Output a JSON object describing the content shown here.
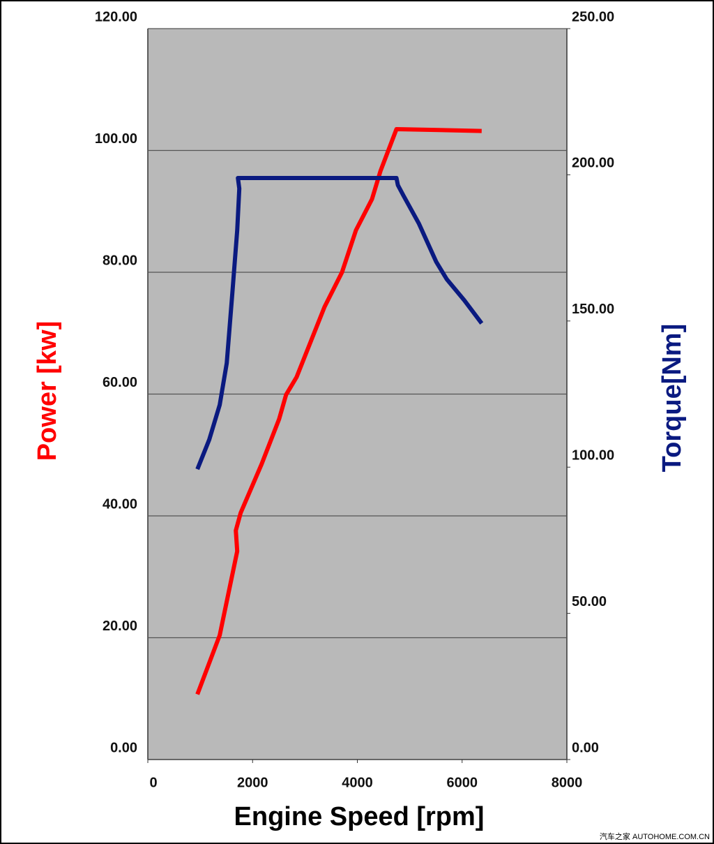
{
  "chart_data": {
    "type": "line",
    "x_label": "Engine Speed [rpm]",
    "y_label": "Power [kw]",
    "y2_label": "Torque[Nm]",
    "watermark": "汽车之家 AUTOHOME.COM.CN",
    "xlim": [
      0,
      8000
    ],
    "xticks": [
      0,
      2000,
      4000,
      6000,
      8000
    ],
    "ylim": [
      0,
      120
    ],
    "yticks": [
      {
        "value": 0,
        "label": "0.00"
      },
      {
        "value": 20,
        "label": "20.00"
      },
      {
        "value": 40,
        "label": "40.00"
      },
      {
        "value": 60,
        "label": "60.00"
      },
      {
        "value": 80,
        "label": "80.00"
      },
      {
        "value": 100,
        "label": "100.00"
      },
      {
        "value": 120,
        "label": "120.00"
      }
    ],
    "y2lim": [
      0,
      250
    ],
    "y2ticks": [
      {
        "value": 0,
        "label": "0.00"
      },
      {
        "value": 50,
        "label": "50.00"
      },
      {
        "value": 100,
        "label": "100.00"
      },
      {
        "value": 150,
        "label": "150.00"
      },
      {
        "value": 200,
        "label": "200.00"
      },
      {
        "value": 250,
        "label": "250.00"
      }
    ],
    "grid": true,
    "plot_background": "#b9b9b9",
    "series": [
      {
        "name": "Power",
        "color": "#ff0000",
        "axis": "y",
        "x": [
          947,
          1373,
          1707,
          1680,
          1773,
          2173,
          2507,
          2640,
          2840,
          3373,
          3707,
          3973,
          4280,
          4440,
          4747,
          6373
        ],
        "values": [
          10.7,
          20.4,
          34.2,
          37.6,
          40.5,
          48.5,
          55.9,
          59.9,
          62.8,
          74.3,
          80.0,
          86.9,
          92.0,
          96.6,
          103.5,
          103.2
        ]
      },
      {
        "name": "Torque",
        "color": "#0a1a80",
        "axis": "y2",
        "x": [
          947,
          1173,
          1373,
          1507,
          1613,
          1707,
          1747,
          1720,
          4747,
          4773,
          4880,
          5173,
          5507,
          5707,
          6040,
          6373
        ],
        "values": [
          99.3,
          109.4,
          121.3,
          135.6,
          159.5,
          181.0,
          195.3,
          198.9,
          198.9,
          196.5,
          192.9,
          183.4,
          170.2,
          164.3,
          157.1,
          149.2
        ]
      }
    ]
  }
}
